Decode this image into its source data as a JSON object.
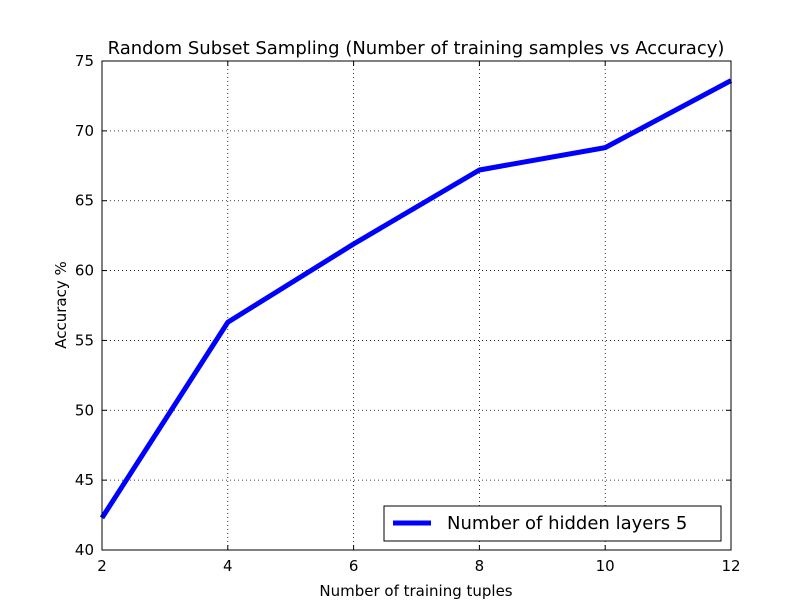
{
  "chart_data": {
    "type": "line",
    "title": "Random Subset Sampling (Number of training samples vs Accuracy)",
    "xlabel": "Number of training tuples",
    "ylabel": "Accuracy %",
    "xlim": [
      2,
      12
    ],
    "ylim": [
      40,
      75
    ],
    "x_ticks": [
      2,
      4,
      6,
      8,
      10,
      12
    ],
    "y_ticks": [
      40,
      45,
      50,
      55,
      60,
      65,
      70,
      75
    ],
    "grid": true,
    "legend_position": "lower-right",
    "series": [
      {
        "name": "Number of hidden layers 5",
        "color": "#0000ff",
        "x": [
          2,
          4,
          6,
          8,
          10,
          12
        ],
        "y": [
          42.3,
          56.3,
          61.9,
          67.2,
          68.8,
          73.6
        ]
      }
    ]
  }
}
